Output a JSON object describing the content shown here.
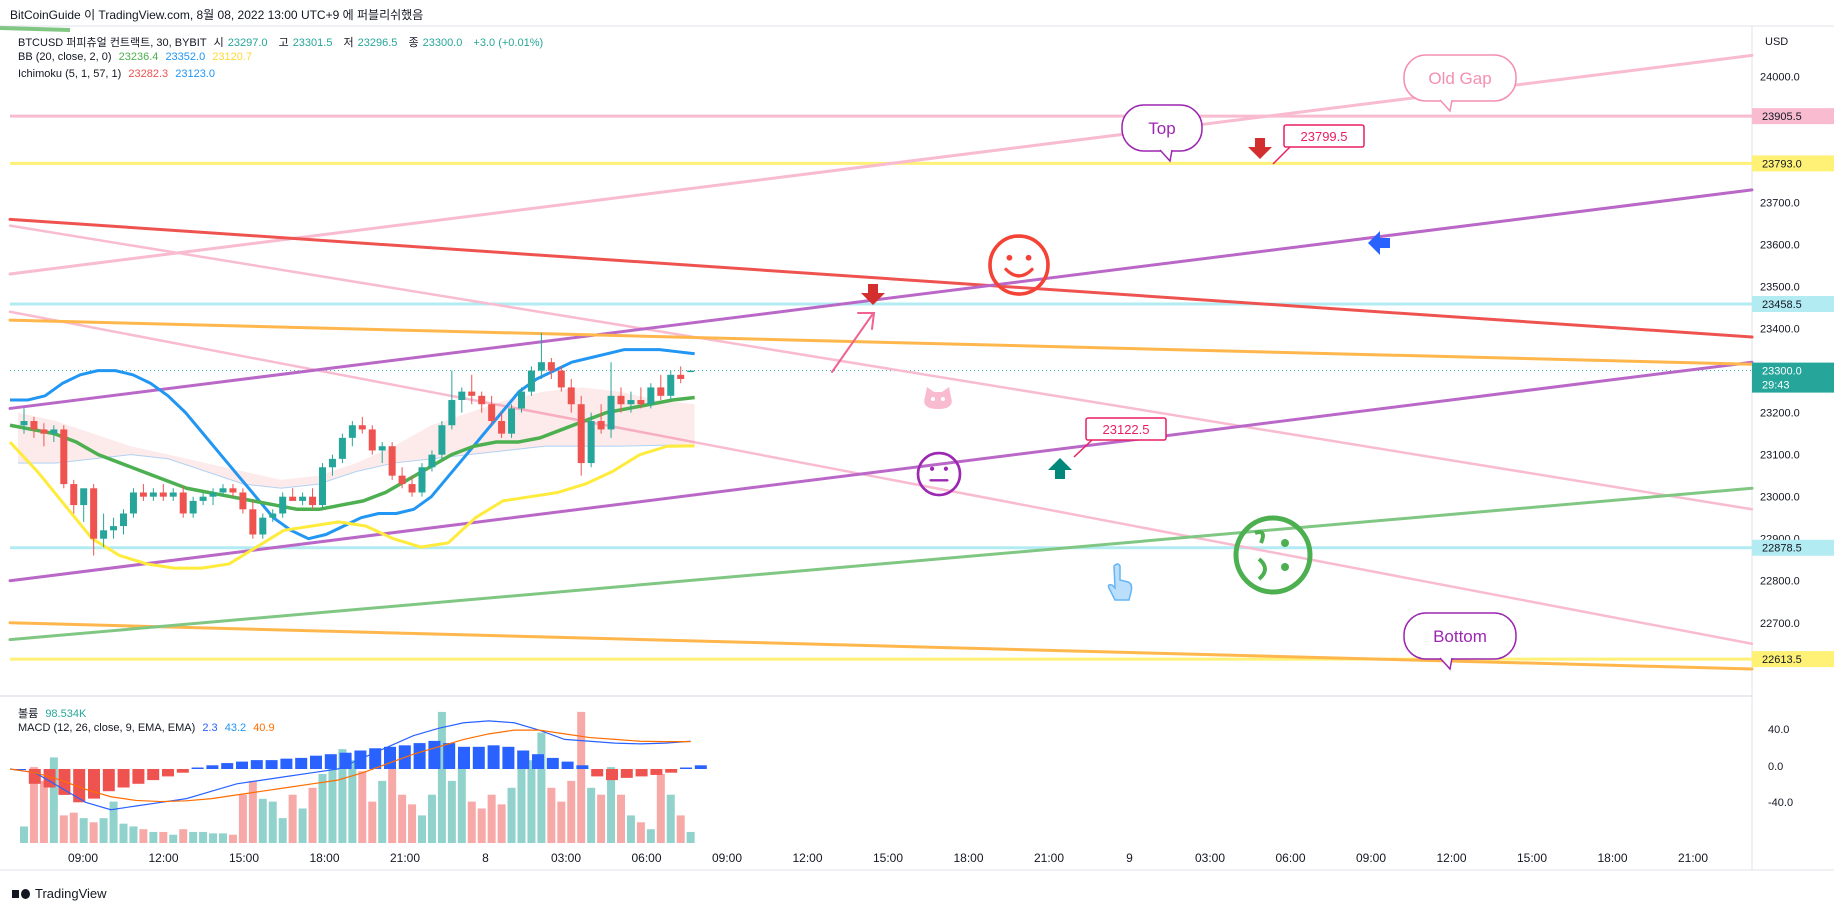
{
  "header": {
    "publisher": "BitCoinGuide",
    "published_text": "이 TradingView.com, 8월 08, 2022 13:00 UTC+9 에 퍼블리쉬했음"
  },
  "legend": {
    "symbol_line": {
      "title": "BTCUSD 퍼피츄얼 컨트랙트, 30, BYBIT",
      "o_label": "시",
      "o": "23297.0",
      "h_label": "고",
      "h": "23301.5",
      "l_label": "저",
      "l": "23296.5",
      "c_label": "종",
      "c": "23300.0",
      "change": "+3.0 (+0.01%)"
    },
    "bb": {
      "label": "BB (20, close, 2, 0)",
      "v1": "23236.4",
      "v2": "23352.0",
      "v3": "23120.7"
    },
    "ichimoku": {
      "label": "Ichimoku (5, 1, 57, 1)",
      "v1": "23282.3",
      "v2": "23123.0"
    },
    "volume": {
      "label": "볼륨",
      "value": "98.534K"
    },
    "macd": {
      "label": "MACD (12, 26, close, 9, EMA, EMA)",
      "v1": "2.3",
      "v2": "43.2",
      "v3": "40.9"
    }
  },
  "footer": {
    "brand": "TradingView"
  },
  "colors": {
    "up": "#26a69a",
    "down": "#ef5350",
    "bb_upper": "#2196f3",
    "bb_mid": "#4caf50",
    "bb_lower": "#ffeb3b",
    "pink": "#f8bbd0",
    "purple": "#ba68c8",
    "red_line": "#ef5350",
    "orange": "#ffb74d",
    "yellow": "#fff176",
    "green_line": "#81c784",
    "cyan": "#b2ebf2",
    "macd_line": "#2962ff",
    "signal_line": "#ff6d00"
  },
  "chart_data": {
    "type": "candlestick",
    "symbol": "BTCUSD",
    "interval": "30",
    "exchange": "BYBIT",
    "currency": "USD",
    "ylim": [
      22540,
      24120
    ],
    "y_ticks": [
      24000,
      23900,
      23800,
      23700,
      23600,
      23500,
      23400,
      23300,
      23200,
      23100,
      23000,
      22900,
      22800,
      22700
    ],
    "y_tick_labels": [
      "24000.0",
      "23900.0",
      "23800.0",
      "23700.0",
      "23600.0",
      "23500.0",
      "23400.0",
      "23300.0",
      "23200.0",
      "23100.0",
      "23000.0",
      "22900.0",
      "22800.0",
      "22700.0"
    ],
    "x_tick_labels": [
      "09:00",
      "12:00",
      "15:00",
      "18:00",
      "21:00",
      "8",
      "03:00",
      "06:00",
      "09:00",
      "12:00",
      "15:00",
      "18:00",
      "21:00",
      "9",
      "03:00",
      "06:00",
      "09:00",
      "12:00",
      "15:00",
      "18:00",
      "21:00"
    ],
    "price_tags": [
      {
        "value": 23905.5,
        "label": "23905.5",
        "bg": "#f8bbd0",
        "fg": "#131722"
      },
      {
        "value": 23793.0,
        "label": "23793.0",
        "bg": "#fff176",
        "fg": "#131722"
      },
      {
        "value": 23458.5,
        "label": "23458.5",
        "bg": "#b2ebf2",
        "fg": "#131722"
      },
      {
        "value": 23300.0,
        "label": "23300.0",
        "sub": "29:43",
        "bg": "#26a69a",
        "fg": "#ffffff"
      },
      {
        "value": 22878.5,
        "label": "22878.5",
        "bg": "#b2ebf2",
        "fg": "#131722"
      },
      {
        "value": 22613.5,
        "label": "22613.5",
        "bg": "#fff176",
        "fg": "#131722"
      }
    ],
    "candles": [
      {
        "o": 23170,
        "h": 23210,
        "l": 23150,
        "c": 23180
      },
      {
        "o": 23180,
        "h": 23190,
        "l": 23140,
        "c": 23160
      },
      {
        "o": 23160,
        "h": 23175,
        "l": 23120,
        "c": 23150
      },
      {
        "o": 23150,
        "h": 23170,
        "l": 23130,
        "c": 23160
      },
      {
        "o": 23160,
        "h": 23170,
        "l": 23020,
        "c": 23030
      },
      {
        "o": 23030,
        "h": 23040,
        "l": 22960,
        "c": 22980
      },
      {
        "o": 22980,
        "h": 23010,
        "l": 22940,
        "c": 23020
      },
      {
        "o": 23020,
        "h": 23030,
        "l": 22860,
        "c": 22900
      },
      {
        "o": 22900,
        "h": 22960,
        "l": 22880,
        "c": 22920
      },
      {
        "o": 22920,
        "h": 22950,
        "l": 22900,
        "c": 22930
      },
      {
        "o": 22930,
        "h": 22970,
        "l": 22910,
        "c": 22960
      },
      {
        "o": 22960,
        "h": 23020,
        "l": 22950,
        "c": 23010
      },
      {
        "o": 23010,
        "h": 23030,
        "l": 22990,
        "c": 23000
      },
      {
        "o": 23000,
        "h": 23020,
        "l": 22990,
        "c": 23010
      },
      {
        "o": 23010,
        "h": 23030,
        "l": 22990,
        "c": 23000
      },
      {
        "o": 23000,
        "h": 23020,
        "l": 22990,
        "c": 23010
      },
      {
        "o": 23010,
        "h": 23025,
        "l": 22950,
        "c": 22960
      },
      {
        "o": 22960,
        "h": 23000,
        "l": 22950,
        "c": 22990
      },
      {
        "o": 22990,
        "h": 23010,
        "l": 22980,
        "c": 23000
      },
      {
        "o": 23000,
        "h": 23020,
        "l": 22980,
        "c": 23010
      },
      {
        "o": 23010,
        "h": 23030,
        "l": 23000,
        "c": 23020
      },
      {
        "o": 23020,
        "h": 23030,
        "l": 23000,
        "c": 23010
      },
      {
        "o": 23010,
        "h": 23020,
        "l": 22960,
        "c": 22970
      },
      {
        "o": 22970,
        "h": 22990,
        "l": 22900,
        "c": 22910
      },
      {
        "o": 22910,
        "h": 22960,
        "l": 22900,
        "c": 22950
      },
      {
        "o": 22950,
        "h": 22970,
        "l": 22940,
        "c": 22960
      },
      {
        "o": 22960,
        "h": 23010,
        "l": 22950,
        "c": 23000
      },
      {
        "o": 23000,
        "h": 23020,
        "l": 22990,
        "c": 22990
      },
      {
        "o": 22990,
        "h": 23010,
        "l": 22980,
        "c": 23000
      },
      {
        "o": 23000,
        "h": 23020,
        "l": 22970,
        "c": 22980
      },
      {
        "o": 22980,
        "h": 23080,
        "l": 22970,
        "c": 23070
      },
      {
        "o": 23070,
        "h": 23100,
        "l": 23050,
        "c": 23090
      },
      {
        "o": 23090,
        "h": 23150,
        "l": 23080,
        "c": 23140
      },
      {
        "o": 23140,
        "h": 23180,
        "l": 23120,
        "c": 23170
      },
      {
        "o": 23170,
        "h": 23190,
        "l": 23150,
        "c": 23160
      },
      {
        "o": 23160,
        "h": 23170,
        "l": 23100,
        "c": 23110
      },
      {
        "o": 23110,
        "h": 23130,
        "l": 23080,
        "c": 23120
      },
      {
        "o": 23120,
        "h": 23130,
        "l": 23040,
        "c": 23050
      },
      {
        "o": 23050,
        "h": 23070,
        "l": 23020,
        "c": 23030
      },
      {
        "o": 23030,
        "h": 23050,
        "l": 23000,
        "c": 23010
      },
      {
        "o": 23010,
        "h": 23080,
        "l": 23000,
        "c": 23070
      },
      {
        "o": 23070,
        "h": 23110,
        "l": 23060,
        "c": 23100
      },
      {
        "o": 23100,
        "h": 23180,
        "l": 23090,
        "c": 23170
      },
      {
        "o": 23170,
        "h": 23300,
        "l": 23160,
        "c": 23230
      },
      {
        "o": 23230,
        "h": 23260,
        "l": 23200,
        "c": 23250
      },
      {
        "o": 23250,
        "h": 23290,
        "l": 23220,
        "c": 23240
      },
      {
        "o": 23240,
        "h": 23250,
        "l": 23200,
        "c": 23220
      },
      {
        "o": 23220,
        "h": 23240,
        "l": 23170,
        "c": 23180
      },
      {
        "o": 23180,
        "h": 23200,
        "l": 23140,
        "c": 23150
      },
      {
        "o": 23150,
        "h": 23220,
        "l": 23140,
        "c": 23210
      },
      {
        "o": 23210,
        "h": 23260,
        "l": 23200,
        "c": 23250
      },
      {
        "o": 23250,
        "h": 23310,
        "l": 23240,
        "c": 23300
      },
      {
        "o": 23300,
        "h": 23390,
        "l": 23280,
        "c": 23320
      },
      {
        "o": 23320,
        "h": 23330,
        "l": 23280,
        "c": 23300
      },
      {
        "o": 23300,
        "h": 23310,
        "l": 23250,
        "c": 23260
      },
      {
        "o": 23260,
        "h": 23280,
        "l": 23200,
        "c": 23220
      },
      {
        "o": 23220,
        "h": 23240,
        "l": 23050,
        "c": 23080
      },
      {
        "o": 23080,
        "h": 23200,
        "l": 23070,
        "c": 23180
      },
      {
        "o": 23180,
        "h": 23220,
        "l": 23150,
        "c": 23160
      },
      {
        "o": 23160,
        "h": 23320,
        "l": 23140,
        "c": 23240
      },
      {
        "o": 23240,
        "h": 23260,
        "l": 23200,
        "c": 23220
      },
      {
        "o": 23220,
        "h": 23250,
        "l": 23200,
        "c": 23230
      },
      {
        "o": 23230,
        "h": 23260,
        "l": 23210,
        "c": 23220
      },
      {
        "o": 23220,
        "h": 23270,
        "l": 23210,
        "c": 23260
      },
      {
        "o": 23260,
        "h": 23290,
        "l": 23230,
        "c": 23240
      },
      {
        "o": 23240,
        "h": 23300,
        "l": 23230,
        "c": 23290
      },
      {
        "o": 23290,
        "h": 23310,
        "l": 23270,
        "c": 23280
      },
      {
        "o": 23297,
        "h": 23301.5,
        "l": 23296.5,
        "c": 23300
      }
    ],
    "bb_upper": [
      23230,
      23230,
      23240,
      23270,
      23290,
      23300,
      23300,
      23290,
      23270,
      23240,
      23200,
      23150,
      23100,
      23050,
      23000,
      22950,
      22920,
      22900,
      22910,
      22930,
      22950,
      22960,
      22960,
      22970,
      23000,
      23050,
      23100,
      23150,
      23200,
      23250,
      23280,
      23300,
      23320,
      23330,
      23340,
      23350,
      23350,
      23350,
      23345,
      23340
    ],
    "bb_mid": [
      23170,
      23160,
      23150,
      23130,
      23100,
      23080,
      23060,
      23040,
      23020,
      23010,
      23000,
      22990,
      22980,
      22970,
      22970,
      22980,
      22990,
      23010,
      23040,
      23070,
      23100,
      23120,
      23130,
      23130,
      23140,
      23160,
      23180,
      23200,
      23210,
      23220,
      23230,
      23236
    ],
    "bb_lower": [
      23130,
      23060,
      22980,
      22900,
      22860,
      22840,
      22830,
      22830,
      22840,
      22880,
      22920,
      22930,
      22940,
      22930,
      22900,
      22880,
      22890,
      22950,
      22990,
      23000,
      23010,
      23030,
      23060,
      23100,
      23120,
      23121
    ],
    "ichimoku_cloud": {
      "a": [
        23200,
        23180,
        23150,
        23120,
        23100,
        23080,
        23060,
        23040,
        23050,
        23080,
        23120,
        23170,
        23200,
        23230,
        23250,
        23260,
        23250,
        23230,
        23220
      ],
      "b": [
        23080,
        23080,
        23090,
        23100,
        23090,
        23060,
        23030,
        23020,
        23030,
        23060,
        23080,
        23090,
        23100,
        23110,
        23120,
        23120,
        23120,
        23122,
        23123
      ]
    },
    "volume": [
      0.12,
      0.55,
      0.45,
      0.62,
      0.2,
      0.22,
      0.18,
      0.15,
      0.18,
      0.3,
      0.14,
      0.12,
      0.1,
      0.08,
      0.08,
      0.06,
      0.1,
      0.08,
      0.08,
      0.07,
      0.07,
      0.06,
      0.35,
      0.45,
      0.32,
      0.3,
      0.18,
      0.35,
      0.25,
      0.4,
      0.5,
      0.55,
      0.68,
      0.6,
      0.52,
      0.3,
      0.45,
      0.55,
      0.35,
      0.28,
      0.2,
      0.35,
      0.95,
      0.45,
      0.65,
      0.3,
      0.25,
      0.35,
      0.28,
      0.4,
      0.55,
      0.6,
      0.8,
      0.4,
      0.3,
      0.45,
      0.95,
      0.4,
      0.35,
      0.55,
      0.35,
      0.2,
      0.15,
      0.1,
      0.5,
      0.35,
      0.2,
      0.08
    ],
    "macd_hist": [
      0,
      -0.2,
      -0.25,
      -0.35,
      -0.45,
      -0.4,
      -0.3,
      -0.25,
      -0.2,
      -0.15,
      -0.1,
      -0.05,
      0.02,
      0.05,
      0.08,
      0.1,
      0.12,
      0.12,
      0.14,
      0.15,
      0.18,
      0.2,
      0.22,
      0.25,
      0.28,
      0.3,
      0.32,
      0.35,
      0.38,
      0.35,
      0.3,
      0.3,
      0.32,
      0.3,
      0.25,
      0.2,
      0.15,
      0.1,
      0.05,
      -0.1,
      -0.15,
      -0.12,
      -0.1,
      -0.08,
      -0.05,
      0.02,
      0.05
    ],
    "macd_line": [
      0.0,
      -0.1,
      -0.5,
      -0.9,
      -1.1,
      -1.0,
      -0.9,
      -0.8,
      -0.6,
      -0.4,
      -0.3,
      -0.2,
      -0.1,
      0.0,
      0.3,
      0.6,
      0.9,
      1.1,
      1.25,
      1.3,
      1.25,
      1.05,
      0.8,
      0.75,
      0.7,
      0.68,
      0.7,
      0.75
    ],
    "signal_line": [
      0.0,
      -0.1,
      -0.3,
      -0.55,
      -0.75,
      -0.85,
      -0.88,
      -0.86,
      -0.8,
      -0.7,
      -0.6,
      -0.5,
      -0.4,
      -0.3,
      -0.1,
      0.15,
      0.4,
      0.6,
      0.8,
      0.95,
      1.05,
      1.05,
      0.95,
      0.85,
      0.8,
      0.75,
      0.74,
      0.74
    ],
    "macd_ticks": [
      "40.0",
      "0.0",
      "-40.0"
    ],
    "annotations": [
      {
        "type": "callout",
        "text": "Old Gap",
        "color": "#f48fb1"
      },
      {
        "type": "callout",
        "text": "Top",
        "color": "#9c27b0"
      },
      {
        "type": "callout",
        "text": "Bottom",
        "color": "#9c27b0"
      },
      {
        "type": "price_label",
        "text": "23799.5",
        "color": "#e91e63"
      },
      {
        "type": "price_label",
        "text": "23122.5",
        "color": "#e91e63"
      },
      {
        "type": "emoji",
        "name": "smile-icon",
        "color": "#f44336"
      },
      {
        "type": "emoji",
        "name": "neutral-face-icon",
        "color": "#9c27b0"
      },
      {
        "type": "emoji",
        "name": "confused-face-icon",
        "color": "#4caf50"
      },
      {
        "type": "emoji",
        "name": "pig-icon",
        "color": "#f8bbd0"
      }
    ]
  }
}
